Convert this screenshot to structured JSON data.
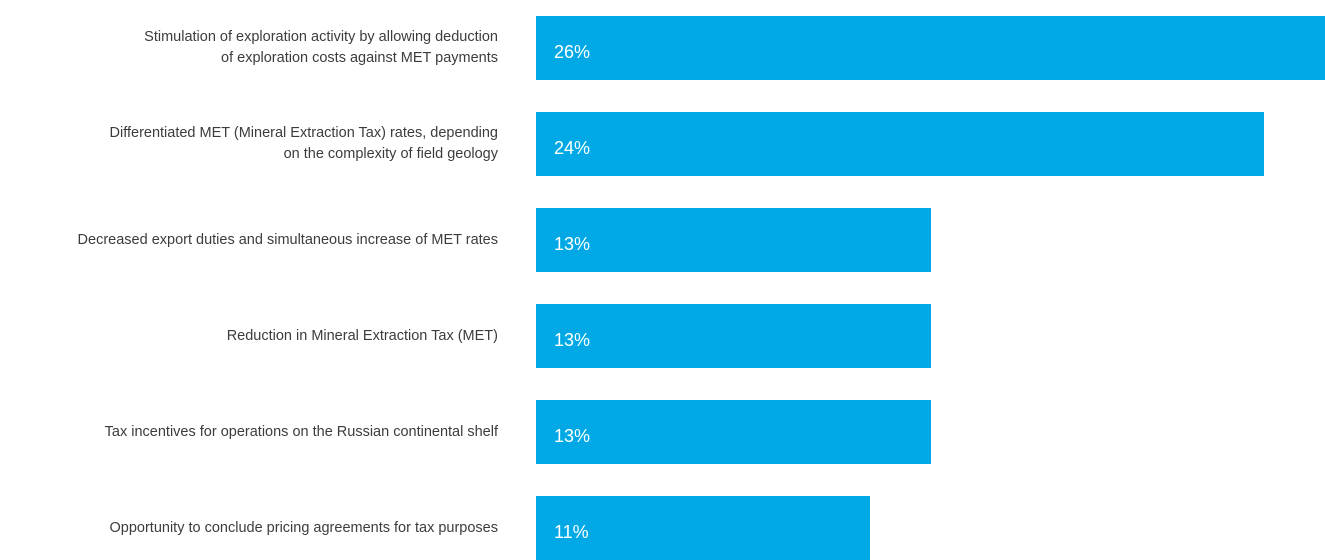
{
  "chart_data": {
    "type": "bar",
    "orientation": "horizontal",
    "bar_color": "#00a9e6",
    "categories": [
      "Stimulation of exploration activity by allowing deduction\nof exploration costs against MET payments",
      "Differentiated MET (Mineral Extraction Tax) rates, depending\non the complexity of field geology",
      "Decreased export duties and simultaneous increase of MET rates",
      "Reduction in Mineral Extraction Tax (MET)",
      "Tax incentives for operations  on the Russian continental shelf",
      "Opportunity to conclude pricing agreements for tax purposes"
    ],
    "values": [
      26,
      24,
      13,
      13,
      13,
      11
    ],
    "value_labels": [
      "26%",
      "24%",
      "13%",
      "13%",
      "13%",
      "11%"
    ],
    "unit": "%",
    "xlim": [
      0,
      26
    ],
    "grid": false,
    "legend": "none"
  }
}
